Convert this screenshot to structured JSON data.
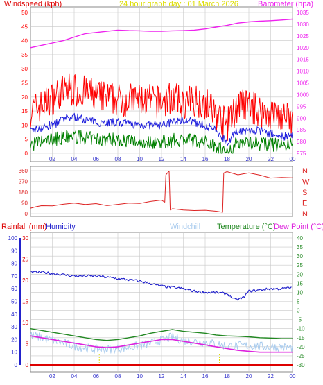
{
  "header": {
    "windspeed_label": "Windspeed (kph)",
    "title": "24 hour graph day : 01 March 2026",
    "barometer_label": "Barometer (hpa)"
  },
  "colors": {
    "wind_red": "#ff0000",
    "wind_avg_blue": "#2222dd",
    "wind_green": "#008000",
    "barometer": "#ee22ee",
    "title_yellow": "#dddd00",
    "direction_red": "#dd2222",
    "humidity_blue": "#2222cc",
    "rainfall_red": "#dd0000",
    "windchill": "#aaccee",
    "temperature_green": "#228822",
    "dewpoint_magenta": "#dd22dd",
    "grid": "#c8c8c8"
  },
  "bottom_legend": {
    "rainfall": "Rainfall (mm)",
    "humidity": "Humidity",
    "windchill": "Windchill",
    "temperature": "Temperature (°C)",
    "dewpoint": "Dew Point (°C)"
  },
  "chart_data": [
    {
      "type": "line",
      "name": "wind-baro",
      "x_ticks": [
        "02",
        "04",
        "06",
        "08",
        "10",
        "12",
        "14",
        "16",
        "18",
        "20",
        "22",
        "00"
      ],
      "y_left_ticks": [
        "0",
        "5",
        "10",
        "15",
        "20",
        "25",
        "30",
        "35",
        "40",
        "45",
        "50"
      ],
      "y_left_lim": [
        0,
        50
      ],
      "y_right_ticks": [
        "975",
        "980",
        "985",
        "990",
        "995",
        "1000",
        "1005",
        "1010",
        "1015",
        "1020",
        "1025",
        "1030",
        "1035"
      ],
      "y_right_lim": [
        975,
        1035
      ],
      "barometer_points": [
        [
          0,
          1020
        ],
        [
          1,
          1021
        ],
        [
          2,
          1022
        ],
        [
          3,
          1023
        ],
        [
          4,
          1024.5
        ],
        [
          5,
          1026
        ],
        [
          6,
          1026.5
        ],
        [
          7,
          1027
        ],
        [
          8,
          1027.5
        ],
        [
          9,
          1027.3
        ],
        [
          10,
          1027.2
        ],
        [
          11,
          1027
        ],
        [
          12,
          1027
        ],
        [
          13,
          1027.2
        ],
        [
          14,
          1027.3
        ],
        [
          15,
          1027.5
        ],
        [
          16,
          1028
        ],
        [
          17,
          1028.8
        ],
        [
          18,
          1029.5
        ],
        [
          19,
          1030.5
        ],
        [
          20,
          1031
        ],
        [
          21,
          1031.3
        ],
        [
          22,
          1031.5
        ],
        [
          23,
          1031.8
        ],
        [
          24,
          1032.2
        ]
      ],
      "wind_gust_profile": [
        [
          0,
          15
        ],
        [
          1.5,
          18
        ],
        [
          2.5,
          21
        ],
        [
          3.5,
          23
        ],
        [
          4.5,
          22
        ],
        [
          5.5,
          21
        ],
        [
          6.5,
          20
        ],
        [
          8,
          19
        ],
        [
          10,
          19
        ],
        [
          12,
          18
        ],
        [
          13,
          20
        ],
        [
          14,
          17
        ],
        [
          15,
          19
        ],
        [
          16,
          18
        ],
        [
          17,
          14
        ],
        [
          18,
          10
        ],
        [
          19,
          17
        ],
        [
          20,
          17
        ],
        [
          21,
          15
        ],
        [
          22,
          14
        ],
        [
          23,
          13
        ],
        [
          24,
          11
        ]
      ],
      "wind_avg_profile": [
        [
          0,
          8
        ],
        [
          2,
          10
        ],
        [
          3,
          12
        ],
        [
          4,
          13
        ],
        [
          5,
          12
        ],
        [
          6,
          11
        ],
        [
          8,
          11
        ],
        [
          10,
          10
        ],
        [
          12,
          10
        ],
        [
          13,
          11
        ],
        [
          14,
          12
        ],
        [
          15,
          11
        ],
        [
          16,
          10
        ],
        [
          17,
          8
        ],
        [
          18,
          4
        ],
        [
          19,
          8
        ],
        [
          20,
          8
        ],
        [
          21,
          8
        ],
        [
          22,
          7
        ],
        [
          23,
          6
        ],
        [
          24,
          6
        ]
      ],
      "wind_low_profile": [
        [
          0,
          3
        ],
        [
          2,
          5
        ],
        [
          4,
          6
        ],
        [
          6,
          5
        ],
        [
          8,
          5
        ],
        [
          10,
          4
        ],
        [
          12,
          4
        ],
        [
          14,
          5
        ],
        [
          16,
          4
        ],
        [
          17,
          3
        ],
        [
          18,
          0
        ],
        [
          19,
          4
        ],
        [
          20,
          4
        ],
        [
          22,
          3
        ],
        [
          24,
          3
        ]
      ]
    },
    {
      "type": "line",
      "name": "wind-direction",
      "y_left_ticks": [
        "0",
        "90",
        "180",
        "270",
        "360"
      ],
      "y_lim": [
        0,
        360
      ],
      "compass_labels": [
        "N",
        "W",
        "S",
        "E",
        "N"
      ],
      "direction_points": [
        [
          0,
          45
        ],
        [
          0.5,
          55
        ],
        [
          1,
          70
        ],
        [
          2,
          65
        ],
        [
          3,
          80
        ],
        [
          4,
          85
        ],
        [
          5,
          75
        ],
        [
          6,
          80
        ],
        [
          7,
          70
        ],
        [
          8,
          75
        ],
        [
          9,
          85
        ],
        [
          10,
          90
        ],
        [
          11,
          100
        ],
        [
          12,
          110
        ],
        [
          12.3,
          95
        ],
        [
          12.4,
          330
        ],
        [
          12.7,
          360
        ],
        [
          12.8,
          30
        ],
        [
          13,
          40
        ],
        [
          14,
          35
        ],
        [
          15,
          30
        ],
        [
          16,
          25
        ],
        [
          17,
          20
        ],
        [
          17.6,
          15
        ],
        [
          17.7,
          340
        ],
        [
          18,
          350
        ],
        [
          19,
          330
        ],
        [
          20,
          340
        ],
        [
          21,
          325
        ],
        [
          22,
          300
        ],
        [
          23,
          305
        ],
        [
          24,
          300
        ]
      ]
    },
    {
      "type": "line",
      "name": "temp-humidity-rain",
      "y_humidity_ticks": [
        "0",
        "10",
        "20",
        "30",
        "40",
        "50",
        "60",
        "70",
        "80",
        "90",
        "100"
      ],
      "humidity_lim": [
        0,
        100
      ],
      "y_rain_ticks": [
        "0",
        "5",
        "10",
        "15",
        "20",
        "25",
        "30"
      ],
      "rain_lim": [
        0,
        30
      ],
      "y_temp_ticks": [
        "-30",
        "-25",
        "-20",
        "-15",
        "-10",
        "-5",
        "0",
        "5",
        "10",
        "15",
        "20",
        "25",
        "30",
        "35",
        "40"
      ],
      "temp_lim": [
        -30,
        40
      ],
      "humidity_points": [
        [
          0,
          73
        ],
        [
          1,
          73
        ],
        [
          2,
          72
        ],
        [
          3,
          71
        ],
        [
          4,
          70
        ],
        [
          6,
          70
        ],
        [
          8,
          68
        ],
        [
          10,
          66
        ],
        [
          12,
          62
        ],
        [
          13,
          61
        ],
        [
          14,
          60
        ],
        [
          15,
          58
        ],
        [
          16,
          57
        ],
        [
          17,
          57
        ],
        [
          18,
          56
        ],
        [
          18.8,
          51
        ],
        [
          19.5,
          53
        ],
        [
          20,
          58
        ],
        [
          21,
          59
        ],
        [
          22,
          60
        ],
        [
          23,
          60
        ],
        [
          24,
          61
        ]
      ],
      "temperature_points": [
        [
          0,
          -10
        ],
        [
          1,
          -11
        ],
        [
          2,
          -12
        ],
        [
          3,
          -13
        ],
        [
          4,
          -14
        ],
        [
          5,
          -15
        ],
        [
          6,
          -16
        ],
        [
          7,
          -16.5
        ],
        [
          8,
          -16
        ],
        [
          9,
          -15
        ],
        [
          10,
          -14
        ],
        [
          11,
          -12.5
        ],
        [
          12,
          -11.5
        ],
        [
          13,
          -10.5
        ],
        [
          14,
          -11.5
        ],
        [
          15,
          -12
        ],
        [
          16,
          -12.5
        ],
        [
          17,
          -13.5
        ],
        [
          18,
          -14
        ],
        [
          19,
          -14.2
        ],
        [
          20,
          -14.5
        ],
        [
          21,
          -15
        ],
        [
          22,
          -15.2
        ],
        [
          23,
          -15.5
        ],
        [
          24,
          -15.5
        ]
      ],
      "dewpoint_points": [
        [
          0,
          -14
        ],
        [
          1,
          -15
        ],
        [
          2,
          -16
        ],
        [
          3,
          -17
        ],
        [
          4,
          -18
        ],
        [
          5,
          -19
        ],
        [
          6,
          -20
        ],
        [
          7,
          -20.5
        ],
        [
          8,
          -20
        ],
        [
          9,
          -19
        ],
        [
          10,
          -18
        ],
        [
          11,
          -17
        ],
        [
          12,
          -16
        ],
        [
          13,
          -16
        ],
        [
          14,
          -17
        ],
        [
          15,
          -18
        ],
        [
          16,
          -19
        ],
        [
          17,
          -20
        ],
        [
          18,
          -21
        ],
        [
          19,
          -22
        ],
        [
          20,
          -22.5
        ],
        [
          21,
          -23
        ],
        [
          22,
          -23
        ],
        [
          23,
          -23
        ],
        [
          24,
          -23
        ]
      ],
      "windchill_profile": [
        [
          0,
          -14
        ],
        [
          2,
          -17
        ],
        [
          4,
          -20
        ],
        [
          6,
          -22
        ],
        [
          8,
          -21.5
        ],
        [
          10,
          -20
        ],
        [
          12,
          -17
        ],
        [
          13,
          -15
        ],
        [
          14,
          -17
        ],
        [
          16,
          -18
        ],
        [
          18,
          -20
        ],
        [
          20,
          -20
        ],
        [
          22,
          -20.5
        ],
        [
          24,
          -21
        ]
      ],
      "rainfall_points": [
        [
          0,
          0
        ],
        [
          24,
          0
        ]
      ],
      "event_marks_hours": [
        6.3,
        17.3
      ]
    }
  ]
}
